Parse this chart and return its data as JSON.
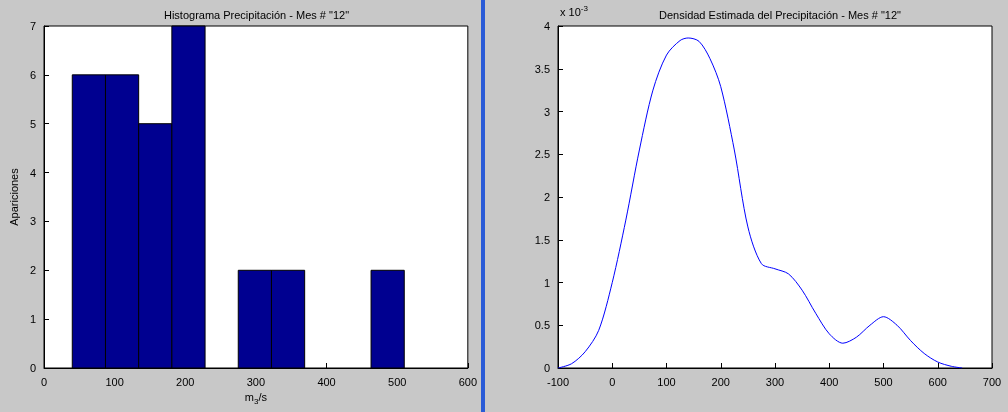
{
  "chart_data": [
    {
      "type": "histogram",
      "title": "Histograma Precipitación - Mes # \"12\"",
      "xlabel": "m$_{3}$/s",
      "ylabel": "Apariciones",
      "bins": [
        40,
        87,
        134,
        181,
        228,
        275,
        322,
        369,
        416,
        463,
        510
      ],
      "values": [
        6,
        6,
        5,
        7,
        0,
        2,
        2,
        0,
        0,
        2
      ],
      "color": "#000090",
      "xlim": [
        0,
        600
      ],
      "xticks": [
        0,
        100,
        200,
        300,
        400,
        500,
        600
      ],
      "ylim": [
        0,
        7
      ],
      "yticks": [
        0,
        1,
        2,
        3,
        4,
        5,
        6,
        7
      ]
    },
    {
      "type": "line",
      "title": "Densidad Estimada del Precipitación - Mes # \"12\"",
      "annotations": [
        "x 10$^{-3}$"
      ],
      "marker": "none",
      "color": "#0000ff",
      "x": [
        -100,
        -75,
        -50,
        -25,
        0,
        25,
        50,
        75,
        100,
        125,
        140,
        160,
        180,
        200,
        225,
        250,
        275,
        300,
        325,
        350,
        375,
        400,
        425,
        450,
        475,
        500,
        525,
        550,
        575,
        600,
        625,
        645
      ],
      "values": [
        0,
        0.05,
        0.19,
        0.44,
        1.0,
        1.73,
        2.55,
        3.25,
        3.66,
        3.83,
        3.86,
        3.82,
        3.62,
        3.29,
        2.55,
        1.65,
        1.22,
        1.16,
        1.1,
        0.91,
        0.64,
        0.4,
        0.29,
        0.36,
        0.5,
        0.6,
        0.5,
        0.32,
        0.17,
        0.07,
        0.02,
        0
      ],
      "xlim": [
        -100,
        700
      ],
      "xticks": [
        -100,
        0,
        100,
        200,
        300,
        400,
        500,
        600,
        700
      ],
      "ylim": [
        0,
        4
      ],
      "yticks": [
        0,
        0.5,
        1,
        1.5,
        2,
        2.5,
        3,
        3.5,
        4
      ]
    }
  ]
}
